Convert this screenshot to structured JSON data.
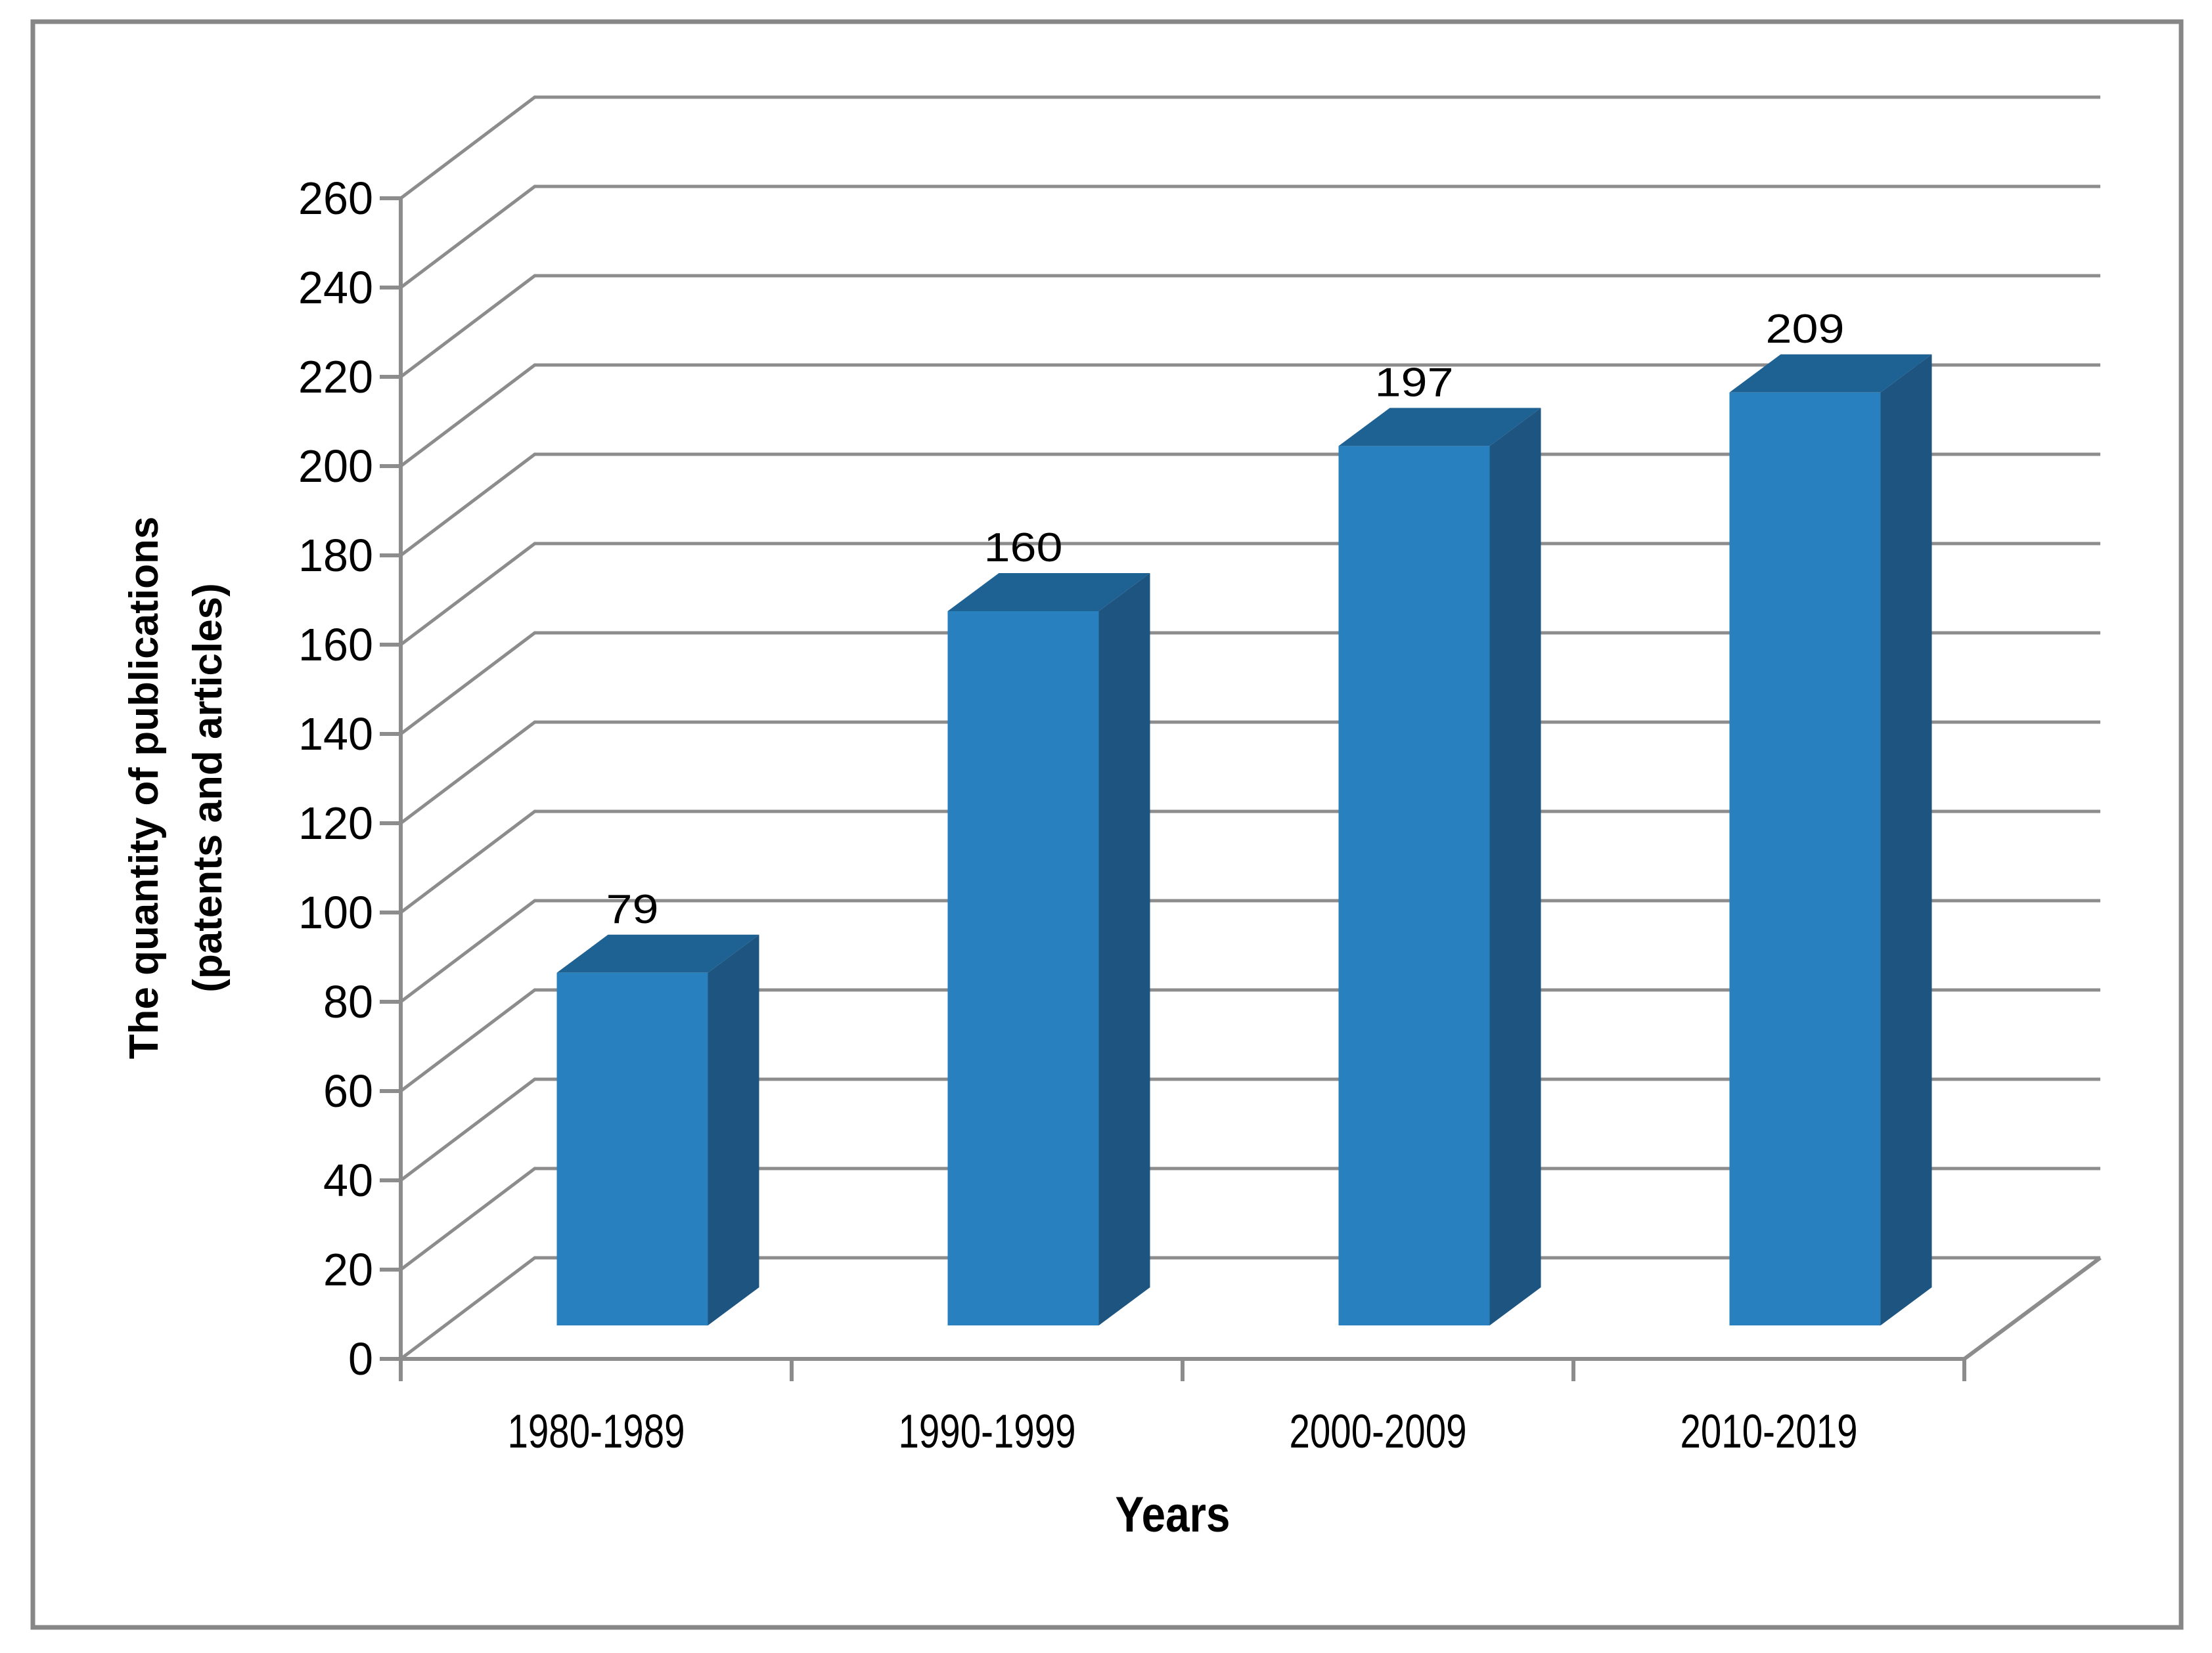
{
  "page": {
    "background": "#FFFFFF",
    "border_color": "#878787"
  },
  "chart_data": {
    "type": "bar",
    "style": "3d-clustered-column",
    "title": "",
    "categories": [
      "1980-1989",
      "1990-1999",
      "2000-2009",
      "2010-2019"
    ],
    "values": [
      79,
      160,
      197,
      209
    ],
    "data_labels": [
      "79",
      "160",
      "197",
      "209"
    ],
    "xlabel": "Years",
    "ylabel": "The quantity of publications (patents and articles)",
    "ylabel_lines": [
      "The quantity of publications",
      "(patents and articles)"
    ],
    "ylim": [
      0,
      260
    ],
    "ytick_step": 20,
    "ytick_labels": [
      "0",
      "20",
      "40",
      "60",
      "80",
      "100",
      "120",
      "140",
      "160",
      "180",
      "200",
      "220",
      "240",
      "260"
    ],
    "grid": true,
    "legend": false,
    "colors": {
      "bar_front": "#2980BE",
      "bar_top": "#1E6294",
      "bar_side": "#1E5480",
      "gridline": "#8C8C8C",
      "axis": "#8C8C8C",
      "text": "#000000",
      "border": "#878787",
      "background": "#FFFFFF"
    }
  }
}
